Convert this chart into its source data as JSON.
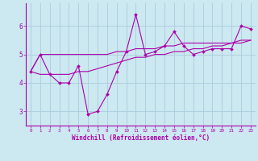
{
  "xlabel": "Windchill (Refroidissement éolien,°C)",
  "x": [
    0,
    1,
    2,
    3,
    4,
    5,
    6,
    7,
    8,
    9,
    10,
    11,
    12,
    13,
    14,
    15,
    16,
    17,
    18,
    19,
    20,
    21,
    22,
    23
  ],
  "y_main": [
    4.4,
    5.0,
    4.3,
    4.0,
    4.0,
    4.6,
    2.9,
    3.0,
    3.6,
    4.4,
    5.1,
    6.4,
    5.0,
    5.1,
    5.3,
    5.8,
    5.3,
    5.0,
    5.1,
    5.2,
    5.2,
    5.2,
    6.0,
    5.9
  ],
  "y_line2": [
    4.4,
    5.0,
    5.0,
    5.0,
    5.0,
    5.0,
    5.0,
    5.0,
    5.0,
    5.1,
    5.1,
    5.2,
    5.2,
    5.2,
    5.3,
    5.3,
    5.4,
    5.4,
    5.4,
    5.4,
    5.4,
    5.4,
    5.5,
    5.5
  ],
  "y_line3": [
    4.4,
    4.3,
    4.3,
    4.3,
    4.3,
    4.4,
    4.4,
    4.5,
    4.6,
    4.7,
    4.8,
    4.9,
    4.9,
    5.0,
    5.0,
    5.1,
    5.1,
    5.2,
    5.2,
    5.3,
    5.3,
    5.4,
    5.4,
    5.5
  ],
  "line_color": "#aa00aa",
  "bg_color": "#cce8f0",
  "grid_color": "#aaccdd",
  "ylim": [
    2.5,
    6.8
  ],
  "yticks": [
    3,
    4,
    5,
    6
  ],
  "xticks": [
    0,
    1,
    2,
    3,
    4,
    5,
    6,
    7,
    8,
    9,
    10,
    11,
    12,
    13,
    14,
    15,
    16,
    17,
    18,
    19,
    20,
    21,
    22,
    23
  ]
}
